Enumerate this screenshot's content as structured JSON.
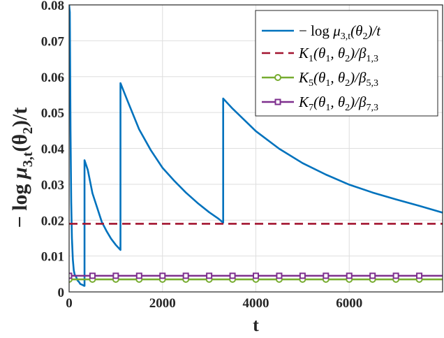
{
  "chart_data": {
    "type": "line",
    "title": "",
    "xlabel": "t",
    "ylabel_parts": {
      "pre": "− log ",
      "mu": "μ",
      "sub": "3,t",
      "arg": "(θ",
      "argsub": "2",
      "post": ")/t"
    },
    "xlim": [
      0,
      8000
    ],
    "ylim": [
      0,
      0.08
    ],
    "xticks": [
      0,
      2000,
      4000,
      6000
    ],
    "xtick_labels": [
      "0",
      "2000",
      "4000",
      "6000"
    ],
    "yticks": [
      0,
      0.01,
      0.02,
      0.03,
      0.04,
      0.05,
      0.06,
      0.07,
      0.08
    ],
    "ytick_labels": [
      "0",
      "0.01",
      "0.02",
      "0.03",
      "0.04",
      "0.05",
      "0.06",
      "0.07",
      "0.08"
    ],
    "grid": true,
    "legend_position": "top-right",
    "series": [
      {
        "name": "−log μ3,t(θ2)/t",
        "style": "solid",
        "color": "#0072BD",
        "points": [
          [
            0,
            0.08
          ],
          [
            15,
            0.078
          ],
          [
            30,
            0.045
          ],
          [
            45,
            0.025
          ],
          [
            60,
            0.015
          ],
          [
            80,
            0.009
          ],
          [
            100,
            0.006
          ],
          [
            120,
            0.0048
          ],
          [
            150,
            0.0042
          ],
          [
            180,
            0.0032
          ],
          [
            210,
            0.0028
          ],
          [
            240,
            0.0022
          ],
          [
            280,
            0.002
          ],
          [
            320,
            0.0017
          ],
          [
            330,
            0.0017
          ],
          [
            330,
            0.0367
          ],
          [
            400,
            0.034
          ],
          [
            500,
            0.0275
          ],
          [
            600,
            0.0235
          ],
          [
            700,
            0.0195
          ],
          [
            800,
            0.017
          ],
          [
            900,
            0.0148
          ],
          [
            1000,
            0.0131
          ],
          [
            1100,
            0.0117
          ],
          [
            1100,
            0.0582
          ],
          [
            1250,
            0.0533
          ],
          [
            1500,
            0.0453
          ],
          [
            1750,
            0.0395
          ],
          [
            2000,
            0.0346
          ],
          [
            2250,
            0.031
          ],
          [
            2500,
            0.0277
          ],
          [
            2750,
            0.0248
          ],
          [
            3000,
            0.0222
          ],
          [
            3200,
            0.0204
          ],
          [
            3300,
            0.0193
          ],
          [
            3300,
            0.0539
          ],
          [
            3500,
            0.0511
          ],
          [
            4000,
            0.0448
          ],
          [
            4500,
            0.0399
          ],
          [
            5000,
            0.0359
          ],
          [
            5500,
            0.0327
          ],
          [
            6000,
            0.0299
          ],
          [
            6500,
            0.0277
          ],
          [
            7000,
            0.0258
          ],
          [
            7500,
            0.024
          ],
          [
            8000,
            0.0221
          ]
        ]
      },
      {
        "name": "K1(θ1,θ2)/β1,3",
        "style": "dashed",
        "color": "#A2142F",
        "value": 0.019
      },
      {
        "name": "K5(θ1,θ2)/β5,3",
        "style": "marker-circle",
        "color": "#77AC30",
        "value": 0.0035,
        "marker_x": [
          0,
          500,
          1000,
          1500,
          2000,
          2500,
          3000,
          3500,
          4000,
          4500,
          5000,
          5500,
          6000,
          6500,
          7000,
          7500
        ]
      },
      {
        "name": "K7(θ1,θ2)/β7,3",
        "style": "marker-square",
        "color": "#7E2F8E",
        "value": 0.0045,
        "marker_x": [
          0,
          500,
          1000,
          1500,
          2000,
          2500,
          3000,
          3500,
          4000,
          4500,
          5000,
          5500,
          6000,
          6500,
          7000,
          7500
        ]
      }
    ],
    "legend": [
      {
        "lead": "− log ",
        "sym": "μ",
        "sub": "3,t",
        "rest": "(θ",
        "rsub": "2",
        "tail": ")/t"
      },
      {
        "lead": "",
        "sym": "K",
        "sub": "1",
        "rest": "(θ",
        "rsub": "1",
        "mid": ", θ",
        "msub": "2",
        "tail": ")/β",
        "tsub": "1,3"
      },
      {
        "lead": "",
        "sym": "K",
        "sub": "5",
        "rest": "(θ",
        "rsub": "1",
        "mid": ", θ",
        "msub": "2",
        "tail": ")/β",
        "tsub": "5,3"
      },
      {
        "lead": "",
        "sym": "K",
        "sub": "7",
        "rest": "(θ",
        "rsub": "1",
        "mid": ", θ",
        "msub": "2",
        "tail": ")/β",
        "tsub": "7,3"
      }
    ]
  }
}
